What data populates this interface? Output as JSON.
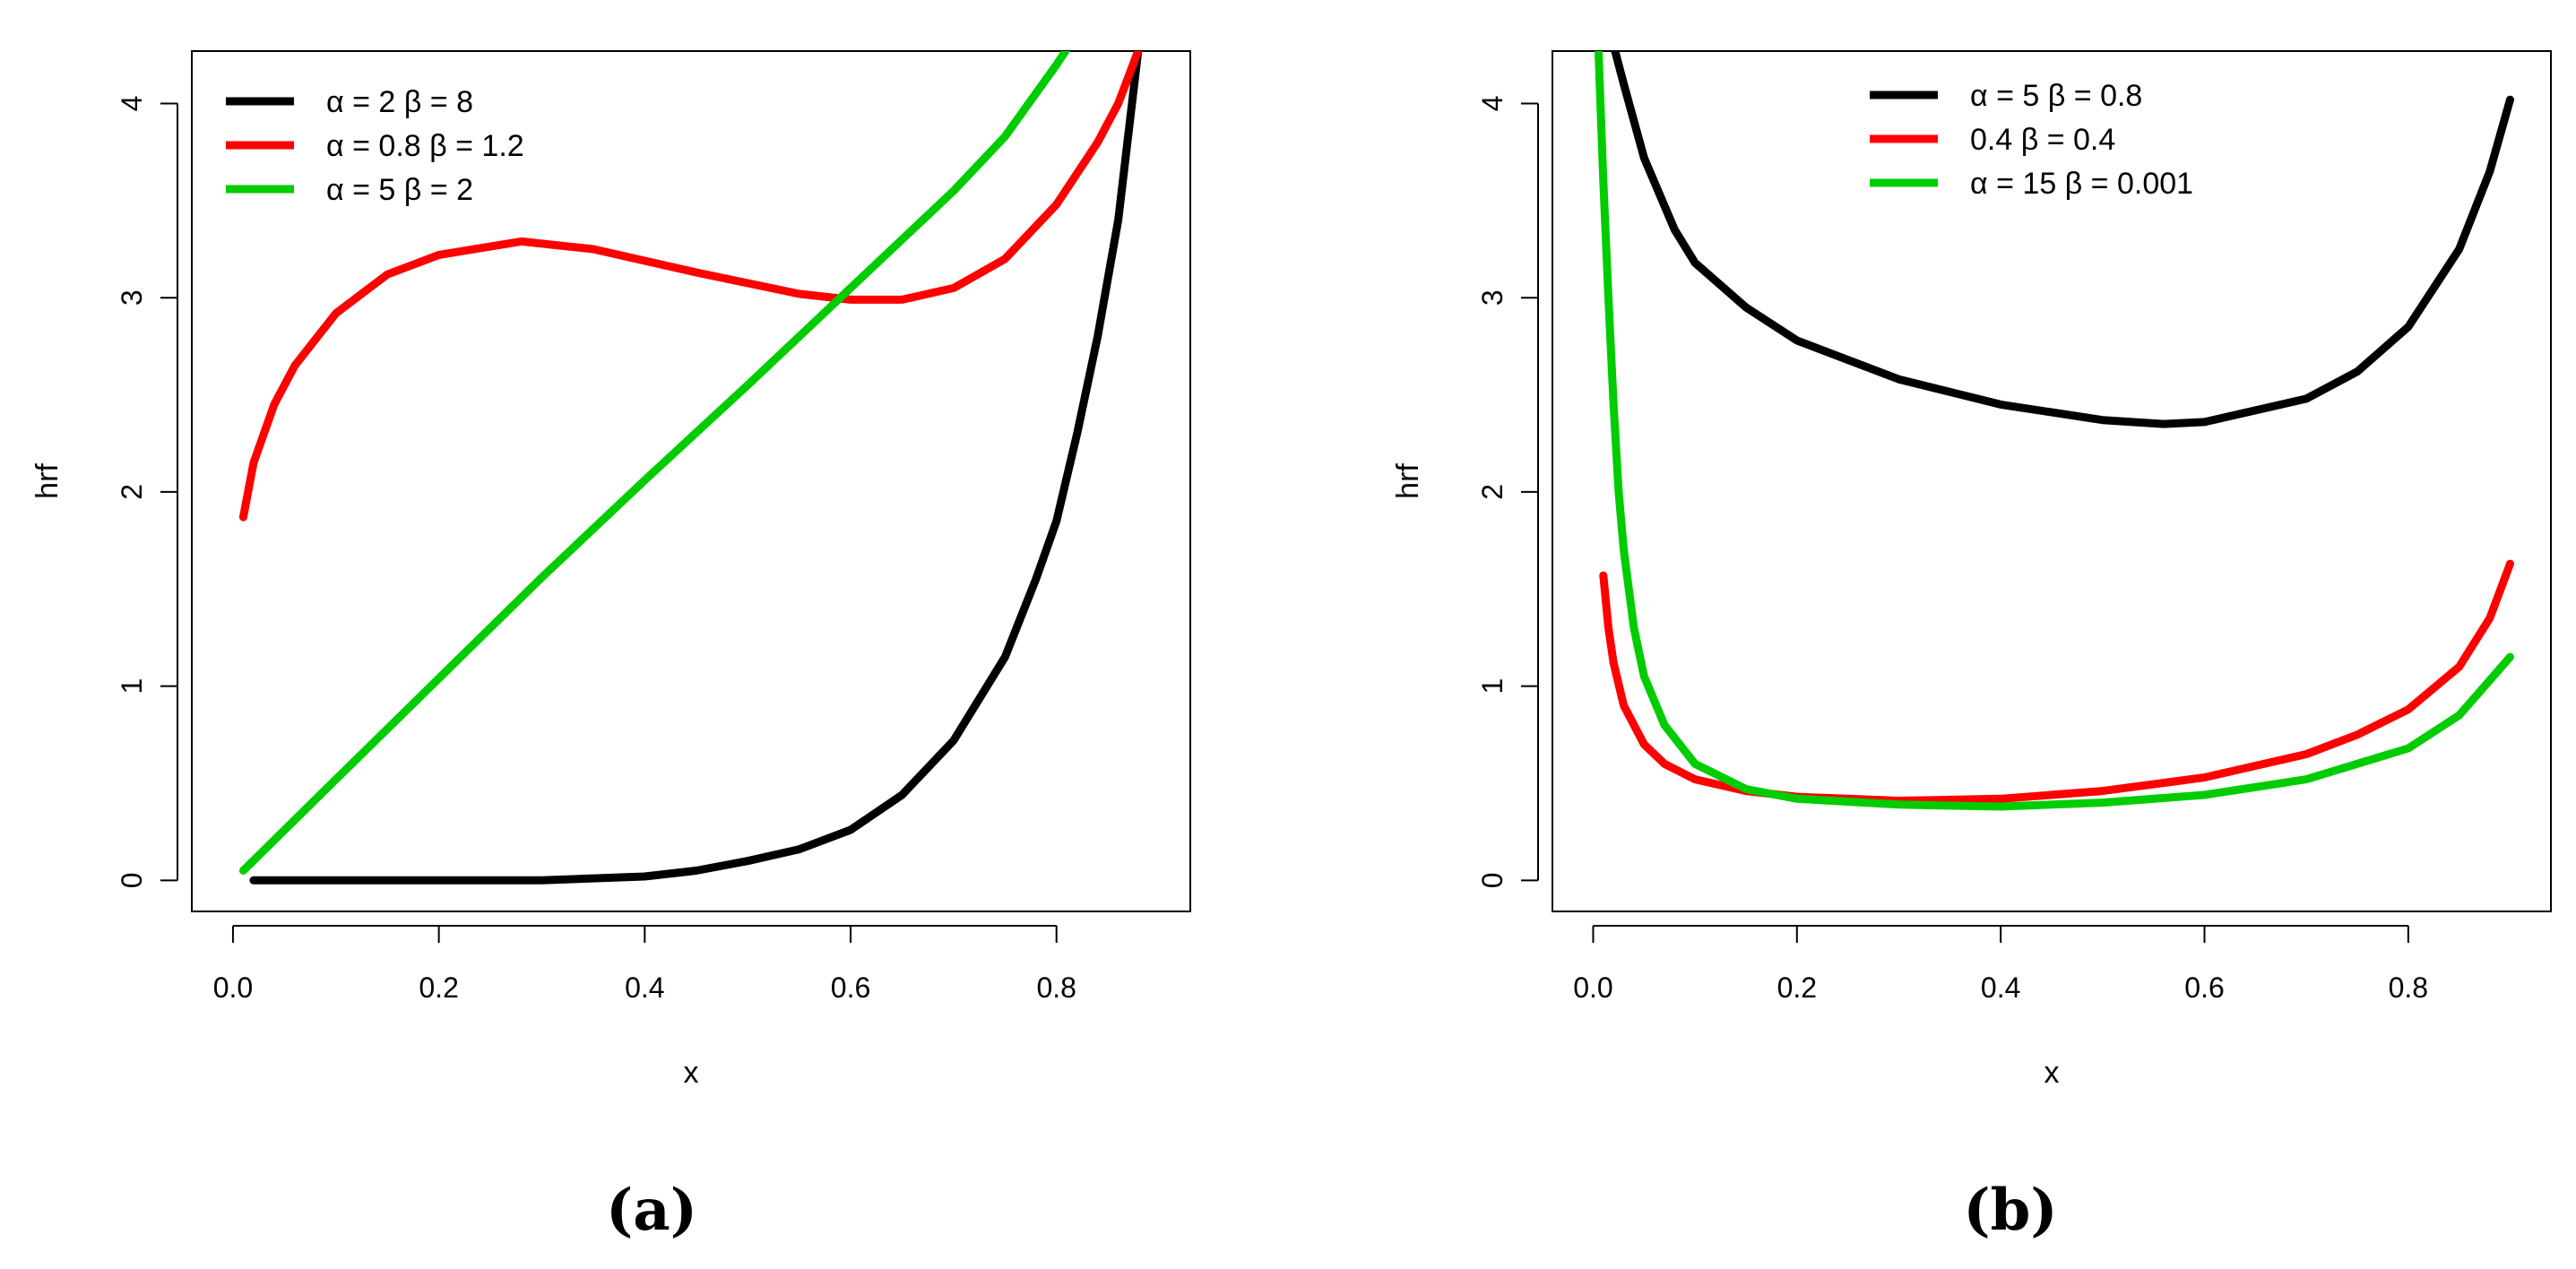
{
  "chart_data": [
    {
      "type": "line",
      "panel_label": "(a)",
      "xlabel": "x",
      "ylabel": "hrf",
      "xlim": [
        -0.04,
        0.93
      ],
      "ylim": [
        -0.16,
        4.27
      ],
      "xticks": [
        0.0,
        0.2,
        0.4,
        0.6,
        0.8
      ],
      "xtick_labels": [
        "0.0",
        "0.2",
        "0.4",
        "0.6",
        "0.8"
      ],
      "yticks": [
        0,
        1,
        2,
        3,
        4
      ],
      "ytick_labels": [
        "0",
        "1",
        "2",
        "3",
        "4"
      ],
      "legend_position": "top-left",
      "series": [
        {
          "name": "α = 2  β = 8",
          "color": "#000000",
          "x": [
            0.02,
            0.1,
            0.2,
            0.3,
            0.4,
            0.45,
            0.5,
            0.55,
            0.6,
            0.65,
            0.7,
            0.75,
            0.78,
            0.8,
            0.82,
            0.84,
            0.86,
            0.87,
            0.88
          ],
          "y": [
            0.0,
            0.0,
            0.0,
            0.0,
            0.02,
            0.05,
            0.1,
            0.16,
            0.26,
            0.44,
            0.72,
            1.15,
            1.55,
            1.85,
            2.3,
            2.8,
            3.4,
            3.85,
            4.3
          ]
        },
        {
          "name": "α = 0.8  β = 1.2",
          "color": "#ff0000",
          "x": [
            0.01,
            0.02,
            0.04,
            0.06,
            0.1,
            0.15,
            0.2,
            0.28,
            0.35,
            0.45,
            0.55,
            0.6,
            0.65,
            0.7,
            0.75,
            0.8,
            0.84,
            0.86,
            0.88
          ],
          "y": [
            1.87,
            2.15,
            2.45,
            2.65,
            2.92,
            3.12,
            3.22,
            3.29,
            3.25,
            3.13,
            3.02,
            2.99,
            2.99,
            3.05,
            3.2,
            3.48,
            3.8,
            4.0,
            4.28
          ]
        },
        {
          "name": "α = 5  β = 2",
          "color": "#00cc00",
          "x": [
            0.01,
            0.1,
            0.2,
            0.3,
            0.4,
            0.5,
            0.6,
            0.7,
            0.75,
            0.8,
            0.81
          ],
          "y": [
            0.05,
            0.52,
            1.04,
            1.56,
            2.06,
            2.55,
            3.05,
            3.55,
            3.83,
            4.2,
            4.28
          ]
        }
      ]
    },
    {
      "type": "line",
      "panel_label": "(b)",
      "xlabel": "x",
      "ylabel": "hrf",
      "xlim": [
        -0.04,
        0.94
      ],
      "ylim": [
        -0.16,
        4.27
      ],
      "xticks": [
        0.0,
        0.2,
        0.4,
        0.6,
        0.8
      ],
      "xtick_labels": [
        "0.0",
        "0.2",
        "0.4",
        "0.6",
        "0.8"
      ],
      "yticks": [
        0,
        1,
        2,
        3,
        4
      ],
      "ytick_labels": [
        "0",
        "1",
        "2",
        "3",
        "4"
      ],
      "legend_position": "top-center",
      "series": [
        {
          "name": "α = 5  β = 0.8",
          "color": "#000000",
          "x": [
            0.02,
            0.03,
            0.05,
            0.08,
            0.1,
            0.15,
            0.2,
            0.3,
            0.4,
            0.5,
            0.56,
            0.6,
            0.7,
            0.75,
            0.8,
            0.85,
            0.88,
            0.9
          ],
          "y": [
            4.3,
            4.1,
            3.72,
            3.35,
            3.18,
            2.95,
            2.78,
            2.58,
            2.45,
            2.37,
            2.35,
            2.36,
            2.48,
            2.62,
            2.85,
            3.25,
            3.65,
            4.02
          ]
        },
        {
          "name": "0.4  β = 0.4",
          "color": "#ff0000",
          "x": [
            0.01,
            0.015,
            0.02,
            0.03,
            0.05,
            0.07,
            0.1,
            0.15,
            0.2,
            0.3,
            0.4,
            0.5,
            0.6,
            0.7,
            0.75,
            0.8,
            0.85,
            0.88,
            0.9
          ],
          "y": [
            1.57,
            1.3,
            1.12,
            0.9,
            0.7,
            0.6,
            0.52,
            0.46,
            0.43,
            0.41,
            0.42,
            0.46,
            0.53,
            0.65,
            0.75,
            0.88,
            1.1,
            1.35,
            1.63
          ]
        },
        {
          "name": "α = 15  β = 0.001",
          "color": "#00cc00",
          "x": [
            0.005,
            0.01,
            0.015,
            0.02,
            0.025,
            0.03,
            0.04,
            0.05,
            0.07,
            0.1,
            0.15,
            0.2,
            0.3,
            0.4,
            0.5,
            0.6,
            0.7,
            0.8,
            0.85,
            0.9
          ],
          "y": [
            4.3,
            3.6,
            3.0,
            2.45,
            2.0,
            1.7,
            1.3,
            1.05,
            0.8,
            0.6,
            0.47,
            0.42,
            0.39,
            0.38,
            0.4,
            0.44,
            0.52,
            0.68,
            0.85,
            1.15
          ]
        }
      ]
    }
  ]
}
